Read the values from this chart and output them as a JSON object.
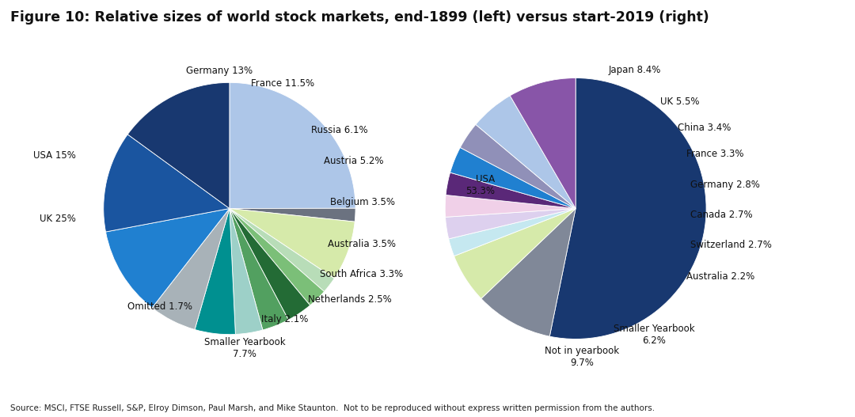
{
  "title": "Figure 10: Relative sizes of world stock markets, end-1899 (left) versus start-2019 (right)",
  "title_fontsize": 12.5,
  "source_text": "Source: MSCI, FTSE Russell, S&P, Elroy Dimson, Paul Marsh, and Mike Staunton.  Not to be reproduced without express written permission from the authors.",
  "left_pie": {
    "labels": [
      "UK",
      "Omitted",
      "Smaller Yearbook",
      "Italy",
      "Netherlands",
      "South Africa",
      "Australia",
      "Belgium",
      "Austria",
      "Russia",
      "France",
      "Germany",
      "USA"
    ],
    "pct_labels": [
      "25%",
      "1.7%",
      "7.7%",
      "2.1%",
      "2.5%",
      "3.3%",
      "3.5%",
      "3.5%",
      "5.2%",
      "6.1%",
      "11.5%",
      "13%",
      "15%"
    ],
    "values": [
      25,
      1.7,
      7.7,
      2.1,
      2.5,
      3.3,
      3.5,
      3.5,
      5.2,
      6.1,
      11.5,
      13,
      15
    ],
    "colors": [
      "#adc6e8",
      "#6b7280",
      "#d6eaaa",
      "#b8ddb8",
      "#7bbf78",
      "#236b35",
      "#52a060",
      "#9dd0c8",
      "#009090",
      "#a8b2b8",
      "#2080d0",
      "#1a55a0",
      "#183870"
    ],
    "startangle": 90
  },
  "right_pie": {
    "labels": [
      "USA",
      "Not in yearbook",
      "Smaller Yearbook",
      "Australia",
      "Switzerland",
      "Canada",
      "Germany",
      "France",
      "China",
      "UK",
      "Japan"
    ],
    "pct_labels": [
      "53.3%",
      "9.7%",
      "6.2%",
      "2.2%",
      "2.7%",
      "2.7%",
      "2.8%",
      "3.3%",
      "3.4%",
      "5.5%",
      "8.4%"
    ],
    "values": [
      53.3,
      9.7,
      6.2,
      2.2,
      2.7,
      2.7,
      2.8,
      3.3,
      3.4,
      5.5,
      8.4
    ],
    "colors": [
      "#183870",
      "#808898",
      "#d6eaaa",
      "#c5e8f0",
      "#ddd0ee",
      "#f0d0e8",
      "#5a2878",
      "#2080d0",
      "#9090b8",
      "#adc6e8",
      "#8855a8"
    ],
    "startangle": 90
  },
  "background_color": "#ffffff",
  "text_color": "#111111",
  "label_fontsize": 8.5,
  "source_fontsize": 7.5
}
